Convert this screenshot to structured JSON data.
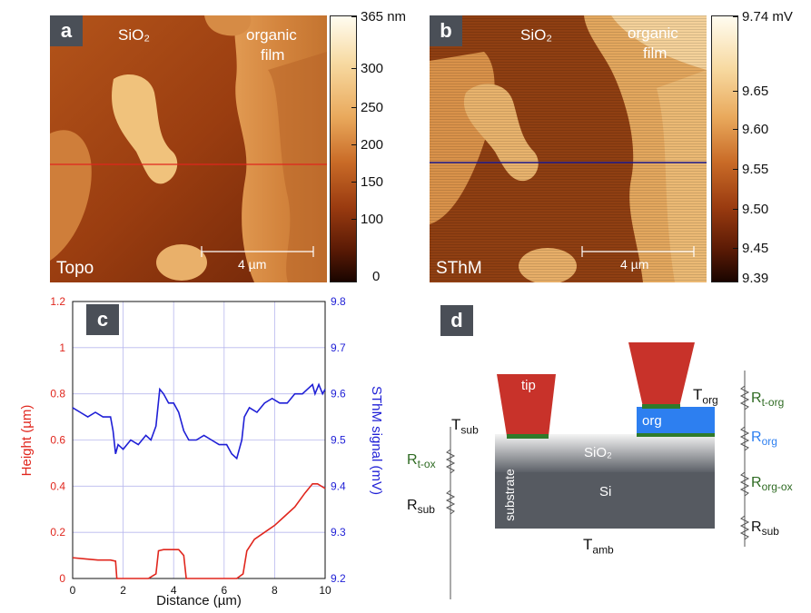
{
  "panel_a": {
    "letter": "a",
    "label_sio2": "SiO₂",
    "label_org_1": "organic",
    "label_org_2": "film",
    "mode": "Topo",
    "scale": "4 µm",
    "colorbar_ticks": [
      "365 nm",
      "300",
      "250",
      "200",
      "150",
      "100",
      "0"
    ]
  },
  "panel_b": {
    "letter": "b",
    "label_sio2": "SiO₂",
    "label_org_1": "organic",
    "label_org_2": "film",
    "mode": "SThM",
    "scale": "4 µm",
    "colorbar_ticks": [
      "9.74 mV",
      "9.65",
      "9.60",
      "9.55",
      "9.50",
      "9.45",
      "9.39"
    ]
  },
  "panel_c": {
    "letter": "c"
  },
  "panel_d": {
    "letter": "d",
    "tip": "tip",
    "org": "org",
    "sio2": "SiO₂",
    "si": "Si",
    "substrate": "substrate",
    "T_sub": "T",
    "T_sub_sub": "sub",
    "T_org": "T",
    "T_org_sub": "org",
    "T_amb": "T",
    "T_amb_sub": "amb",
    "R_t_ox": "R",
    "R_t_ox_sub": "t-ox",
    "R_sub_left": "R",
    "R_sub_left_sub": "sub",
    "R_t_org": "R",
    "R_t_org_sub": "t-org",
    "R_org": "R",
    "R_org_sub": "org",
    "R_org_ox": "R",
    "R_org_ox_sub": "org-ox",
    "R_sub_right": "R",
    "R_sub_right_sub": "sub"
  },
  "chart_data": {
    "type": "line",
    "xlabel": "Distance (µm)",
    "ylabel": "Height (µm)",
    "y2label": "SThM signal (mV)",
    "xlim": [
      0,
      10
    ],
    "ylim": [
      0,
      1.2
    ],
    "y2lim": [
      9.2,
      9.8
    ],
    "xticks": [
      "0",
      "2",
      "4",
      "6",
      "8",
      "10"
    ],
    "yticks": [
      "0",
      "0.2",
      "0.4",
      "0.6",
      "0.8",
      "1",
      "1.2"
    ],
    "y2ticks": [
      "9.2",
      "9.3",
      "9.4",
      "9.5",
      "9.6",
      "9.7",
      "9.8"
    ],
    "grid": true,
    "colors": {
      "height": "#e0261d",
      "sthm": "#1f1fd6"
    },
    "series": [
      {
        "axis": "left",
        "x": [
          0,
          0.5,
          1.0,
          1.5,
          1.7,
          1.75,
          2.0,
          3.0,
          3.3,
          3.4,
          3.6,
          4.2,
          4.4,
          4.5,
          5.0,
          6.5,
          6.75,
          6.9,
          7.2,
          7.6,
          8.0,
          8.4,
          8.8,
          9.2,
          9.5,
          9.7,
          10.0
        ],
        "y": [
          0.09,
          0.085,
          0.08,
          0.08,
          0.075,
          0.0,
          0.0,
          0.0,
          0.02,
          0.12,
          0.125,
          0.125,
          0.1,
          0.0,
          0.0,
          0.0,
          0.02,
          0.12,
          0.17,
          0.2,
          0.23,
          0.27,
          0.31,
          0.37,
          0.41,
          0.41,
          0.39
        ]
      },
      {
        "axis": "right",
        "x": [
          0,
          0.3,
          0.6,
          0.9,
          1.2,
          1.5,
          1.6,
          1.7,
          1.8,
          2.0,
          2.3,
          2.6,
          2.9,
          3.1,
          3.3,
          3.45,
          3.6,
          3.8,
          4.0,
          4.2,
          4.4,
          4.6,
          4.9,
          5.2,
          5.5,
          5.8,
          6.1,
          6.3,
          6.5,
          6.7,
          6.8,
          7.0,
          7.3,
          7.6,
          7.9,
          8.2,
          8.5,
          8.8,
          9.1,
          9.3,
          9.5,
          9.6,
          9.75,
          9.9,
          10.0
        ],
        "y": [
          9.57,
          9.56,
          9.55,
          9.56,
          9.55,
          9.55,
          9.52,
          9.47,
          9.49,
          9.48,
          9.5,
          9.49,
          9.51,
          9.5,
          9.53,
          9.61,
          9.6,
          9.58,
          9.58,
          9.56,
          9.52,
          9.5,
          9.5,
          9.51,
          9.5,
          9.49,
          9.49,
          9.47,
          9.46,
          9.5,
          9.55,
          9.57,
          9.56,
          9.58,
          9.59,
          9.58,
          9.58,
          9.6,
          9.6,
          9.61,
          9.62,
          9.6,
          9.62,
          9.6,
          9.61
        ]
      }
    ]
  }
}
